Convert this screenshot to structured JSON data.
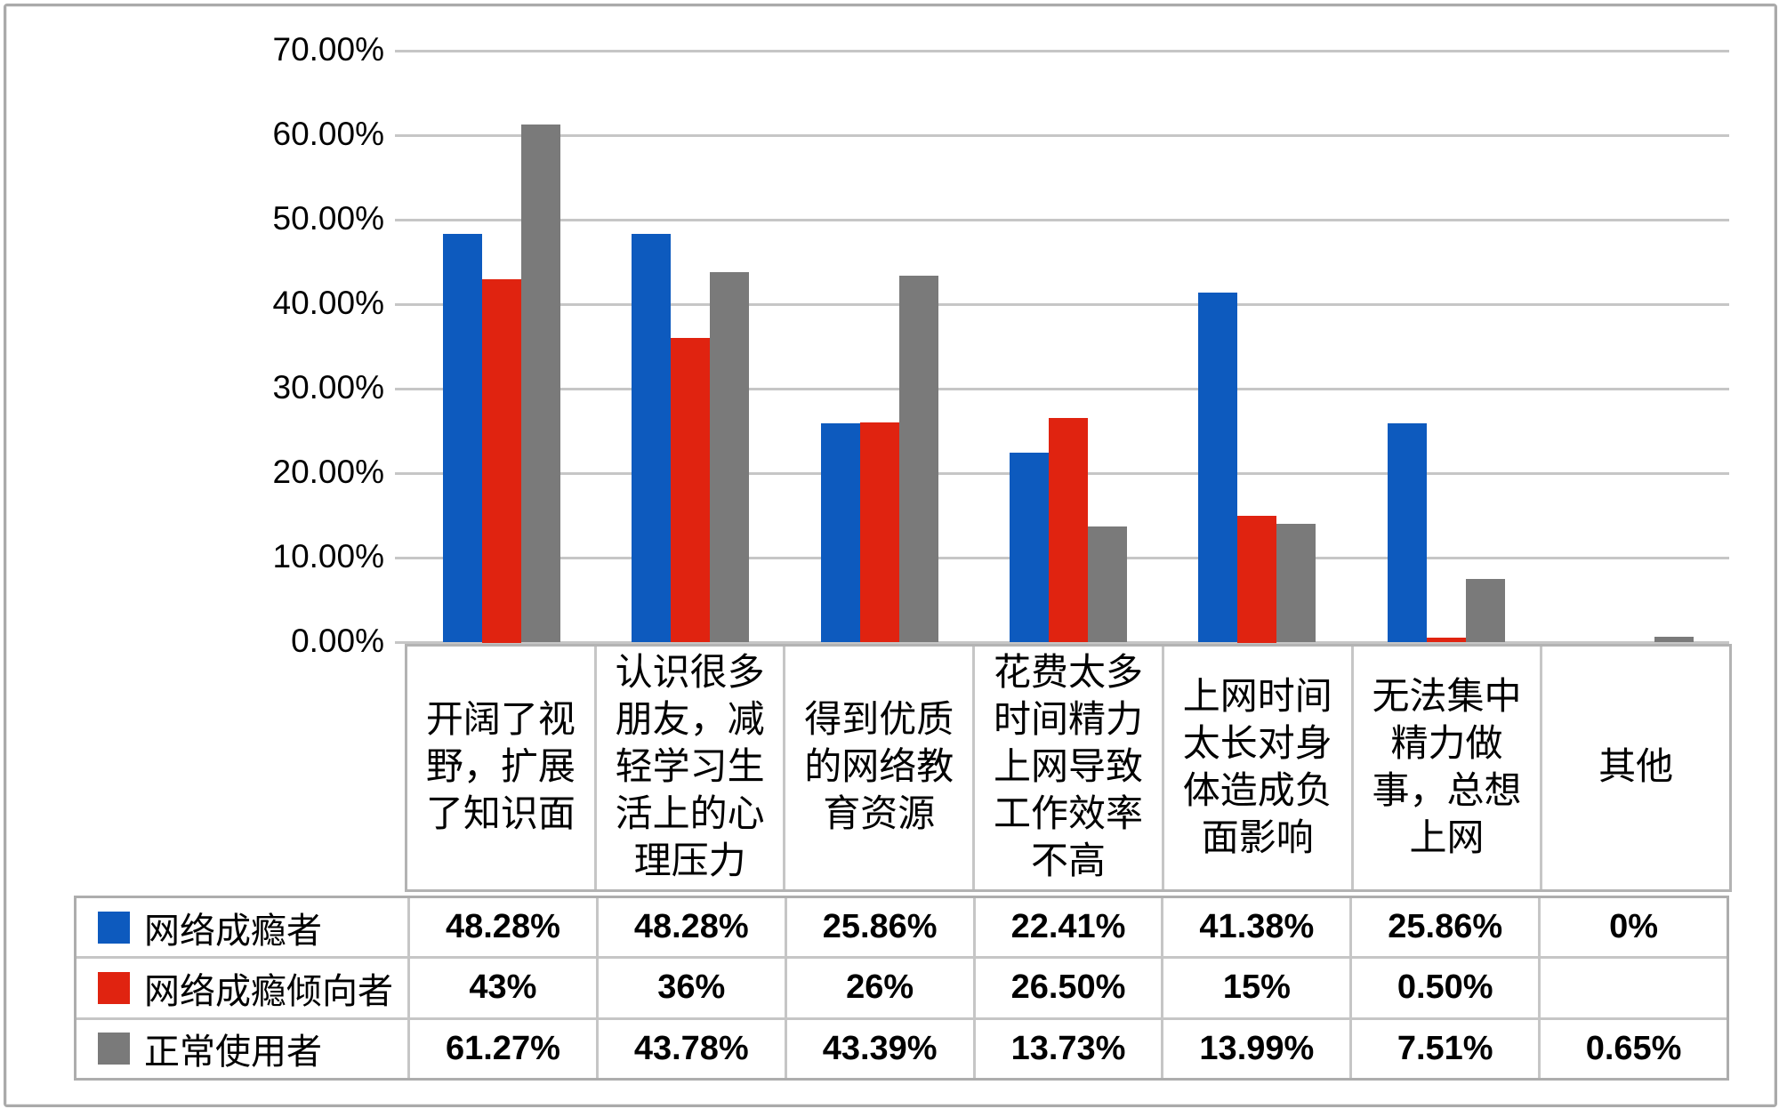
{
  "chart_data": {
    "type": "bar",
    "title": "",
    "xlabel": "",
    "ylabel": "",
    "grid": true,
    "legend_position": "table-left",
    "y_axis": {
      "min": 0,
      "max": 70,
      "step": 10,
      "ticks": [
        "0.00%",
        "10.00%",
        "20.00%",
        "30.00%",
        "40.00%",
        "50.00%",
        "60.00%",
        "70.00%"
      ]
    },
    "categories": [
      "开阔了视\n野，扩展\n了知识面",
      "认识很多\n朋友，减\n轻学习生\n活上的心\n理压力",
      "得到优质\n的网络教\n育资源",
      "花费太多\n时间精力\n上网导致\n工作效率\n不高",
      "上网时间\n太长对身\n体造成负\n面影响",
      "无法集中\n精力做\n事，总想\n上网",
      "其他"
    ],
    "series": [
      {
        "name": "网络成瘾者",
        "color": "#0d5abe",
        "values": [
          48.28,
          48.28,
          25.86,
          22.41,
          41.38,
          25.86,
          0
        ],
        "labels": [
          "48.28%",
          "48.28%",
          "25.86%",
          "22.41%",
          "41.38%",
          "25.86%",
          "0%"
        ]
      },
      {
        "name": "网络成瘾倾向者",
        "color": "#e02310",
        "values": [
          43,
          36,
          26,
          26.5,
          15,
          0.5,
          null
        ],
        "labels": [
          "43%",
          "36%",
          "26%",
          "26.50%",
          "15%",
          "0.50%",
          ""
        ]
      },
      {
        "name": "正常使用者",
        "color": "#7a7a7a",
        "values": [
          61.27,
          43.78,
          43.39,
          13.73,
          13.99,
          7.51,
          0.65
        ],
        "labels": [
          "61.27%",
          "43.78%",
          "43.39%",
          "13.73%",
          "13.99%",
          "7.51%",
          "0.65%"
        ]
      }
    ]
  },
  "colors": {
    "gridline": "#c6c6c6",
    "table_border": "#adadad",
    "cell_border": "#c6c6c6",
    "frame_border": "#aaaaaa"
  }
}
